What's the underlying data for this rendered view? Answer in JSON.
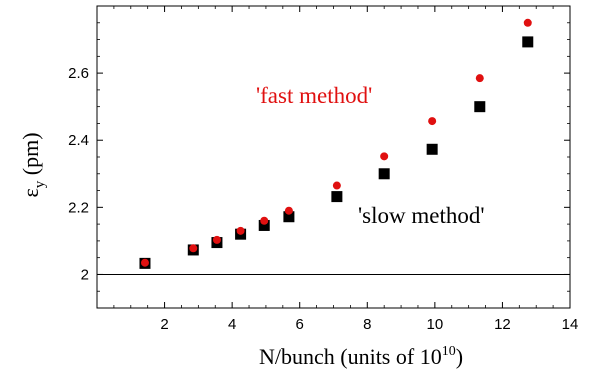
{
  "chart_data": {
    "type": "scatter",
    "title": "",
    "xlabel": "N/bunch (units of 10",
    "xlabel_exponent": "10",
    "xlabel_suffix": ")",
    "ylabel_symbol": "ε",
    "ylabel_subscript": "y",
    "ylabel_unit": " (pm)",
    "xlim": [
      0,
      14
    ],
    "ylim": [
      1.9,
      2.8
    ],
    "x_ticks": [
      2,
      4,
      6,
      8,
      10,
      12,
      14
    ],
    "x_tick_labels": [
      "2",
      "4",
      "6",
      "8",
      "10",
      "12",
      "14"
    ],
    "y_ticks": [
      2.0,
      2.2,
      2.4,
      2.6
    ],
    "y_tick_labels": [
      "2",
      "2.2",
      "2.4",
      "2.6"
    ],
    "reference_line_y": 2.0,
    "grid": false,
    "series": [
      {
        "name": "'fast method'",
        "marker": "circle",
        "color": "#e01010",
        "x": [
          1.42,
          2.85,
          3.55,
          4.25,
          4.95,
          5.68,
          7.1,
          8.5,
          9.92,
          11.33,
          12.75
        ],
        "y": [
          2.035,
          2.078,
          2.103,
          2.13,
          2.16,
          2.19,
          2.265,
          2.352,
          2.457,
          2.585,
          2.75
        ]
      },
      {
        "name": "'slow method'",
        "marker": "square",
        "color": "#000000",
        "x": [
          1.42,
          2.85,
          3.55,
          4.25,
          4.95,
          5.68,
          7.1,
          8.5,
          9.92,
          11.33,
          12.75
        ],
        "y": [
          2.033,
          2.073,
          2.095,
          2.12,
          2.146,
          2.172,
          2.232,
          2.3,
          2.373,
          2.5,
          2.693
        ]
      }
    ],
    "annotations": [
      {
        "text": "'fast method'",
        "color": "#e01010"
      },
      {
        "text": "'slow method'",
        "color": "#000000"
      }
    ]
  }
}
